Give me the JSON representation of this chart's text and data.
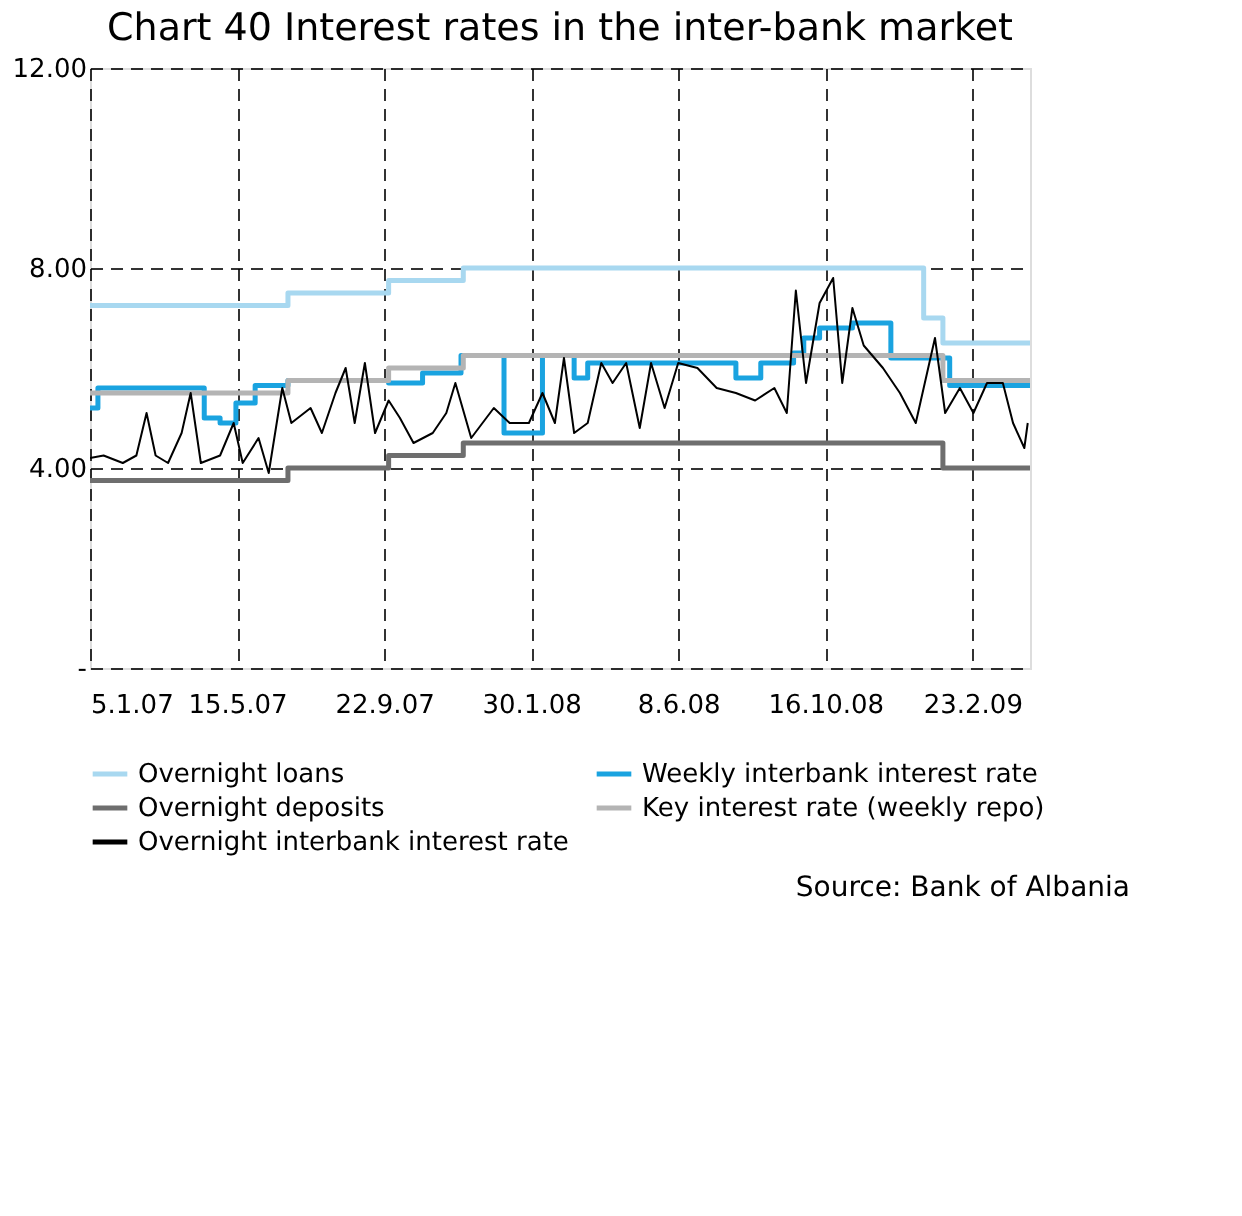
{
  "chart_data": {
    "type": "line",
    "title": "Chart 40 Interest rates in the inter-bank market",
    "xlim": [
      "2007-01-05",
      "2009-04-15"
    ],
    "xticks": [
      {
        "value": "2007-01-05",
        "label": "5.1.07"
      },
      {
        "value": "2007-05-15",
        "label": "15.5.07"
      },
      {
        "value": "2007-09-22",
        "label": "22.9.07"
      },
      {
        "value": "2008-01-30",
        "label": "30.1.08"
      },
      {
        "value": "2008-06-08",
        "label": "8.6.08"
      },
      {
        "value": "2008-10-16",
        "label": "16.10.08"
      },
      {
        "value": "2009-02-23",
        "label": "23.2.09"
      }
    ],
    "ylim": [
      0,
      12
    ],
    "yticks": [
      {
        "value": 0,
        "label": "-"
      },
      {
        "value": 4,
        "label": "4.00"
      },
      {
        "value": 8,
        "label": "8.00"
      },
      {
        "value": 12,
        "label": "12.00"
      }
    ],
    "grid": true,
    "legend": "bottom",
    "marker": "none",
    "line_style": "solid",
    "series": [
      {
        "name": "Overnight loans",
        "color": "#a8d8f0",
        "type": "step",
        "x": [
          "2007-01-05",
          "2007-06-29",
          "2007-09-26",
          "2007-12-01",
          "2009-01-11",
          "2009-01-28",
          "2009-04-15"
        ],
        "values": [
          7.25,
          7.5,
          7.75,
          8.0,
          7.0,
          6.5,
          6.5
        ]
      },
      {
        "name": "Weekly interbank interest rate",
        "color": "#1aa3e0",
        "type": "step",
        "x": [
          "2007-01-05",
          "2007-01-12",
          "2007-04-16",
          "2007-04-30",
          "2007-05-14",
          "2007-05-31",
          "2007-06-29",
          "2007-09-26",
          "2007-10-26",
          "2007-11-29",
          "2008-01-06",
          "2008-02-09",
          "2008-03-08",
          "2008-03-20",
          "2008-07-29",
          "2008-08-20",
          "2008-09-18",
          "2008-09-27",
          "2008-10-11",
          "2008-11-09",
          "2008-12-13",
          "2009-02-03",
          "2009-04-15"
        ],
        "values": [
          5.2,
          5.6,
          5.0,
          4.9,
          5.3,
          5.65,
          5.75,
          5.7,
          5.9,
          6.25,
          4.7,
          6.25,
          5.8,
          6.1,
          5.8,
          6.1,
          6.3,
          6.6,
          6.8,
          6.9,
          6.2,
          5.65,
          5.6
        ]
      },
      {
        "name": "Overnight deposits",
        "color": "#6e6e6e",
        "type": "step",
        "x": [
          "2007-01-05",
          "2007-06-29",
          "2007-09-26",
          "2007-12-01",
          "2009-01-28",
          "2009-04-15"
        ],
        "values": [
          3.75,
          4.0,
          4.25,
          4.5,
          4.0,
          4.0
        ]
      },
      {
        "name": "Key interest rate (weekly repo)",
        "color": "#b4b4b4",
        "type": "step",
        "x": [
          "2007-01-05",
          "2007-06-29",
          "2007-09-26",
          "2007-12-01",
          "2009-01-28",
          "2009-04-15"
        ],
        "values": [
          5.5,
          5.75,
          6.0,
          6.25,
          5.75,
          5.75
        ]
      },
      {
        "name": "Overnight interbank interest rate",
        "color": "#000000",
        "type": "line",
        "x": [
          "2007-01-05",
          "2007-01-17",
          "2007-02-03",
          "2007-02-15",
          "2007-02-24",
          "2007-03-04",
          "2007-03-15",
          "2007-03-27",
          "2007-04-04",
          "2007-04-13",
          "2007-04-30",
          "2007-05-12",
          "2007-05-20",
          "2007-06-03",
          "2007-06-12",
          "2007-06-24",
          "2007-07-02",
          "2007-07-19",
          "2007-07-29",
          "2007-08-10",
          "2007-08-19",
          "2007-08-27",
          "2007-09-05",
          "2007-09-14",
          "2007-09-26",
          "2007-10-06",
          "2007-10-18",
          "2007-11-04",
          "2007-11-16",
          "2007-11-24",
          "2007-12-08",
          "2007-12-28",
          "2008-01-11",
          "2008-01-28",
          "2008-02-09",
          "2008-02-20",
          "2008-02-28",
          "2008-03-08",
          "2008-03-20",
          "2008-04-01",
          "2008-04-11",
          "2008-04-23",
          "2008-05-05",
          "2008-05-15",
          "2008-05-27",
          "2008-06-08",
          "2008-06-25",
          "2008-07-12",
          "2008-07-29",
          "2008-08-15",
          "2008-09-01",
          "2008-09-12",
          "2008-09-20",
          "2008-09-29",
          "2008-10-11",
          "2008-10-23",
          "2008-10-31",
          "2008-11-09",
          "2008-11-19",
          "2008-12-06",
          "2008-12-21",
          "2009-01-04",
          "2009-01-21",
          "2009-01-30",
          "2009-02-12",
          "2009-02-24",
          "2009-03-08",
          "2009-03-22",
          "2009-03-31",
          "2009-04-10",
          "2009-04-13"
        ],
        "values": [
          4.2,
          4.25,
          4.1,
          4.25,
          5.1,
          4.25,
          4.1,
          4.7,
          5.5,
          4.1,
          4.25,
          4.9,
          4.1,
          4.6,
          3.9,
          5.6,
          4.9,
          5.2,
          4.7,
          5.5,
          6.0,
          4.9,
          6.1,
          4.7,
          5.35,
          5.0,
          4.5,
          4.7,
          5.1,
          5.7,
          4.6,
          5.2,
          4.9,
          4.9,
          5.5,
          4.9,
          6.2,
          4.7,
          4.9,
          6.1,
          5.7,
          6.1,
          4.8,
          6.1,
          5.2,
          6.1,
          6.0,
          5.6,
          5.5,
          5.35,
          5.6,
          5.1,
          7.55,
          5.7,
          7.3,
          7.8,
          5.7,
          7.2,
          6.45,
          6.0,
          5.5,
          4.9,
          6.6,
          5.1,
          5.6,
          5.1,
          5.7,
          5.7,
          4.9,
          4.4,
          4.9
        ]
      }
    ],
    "annotations": [
      "Source: Bank of Albania"
    ]
  }
}
